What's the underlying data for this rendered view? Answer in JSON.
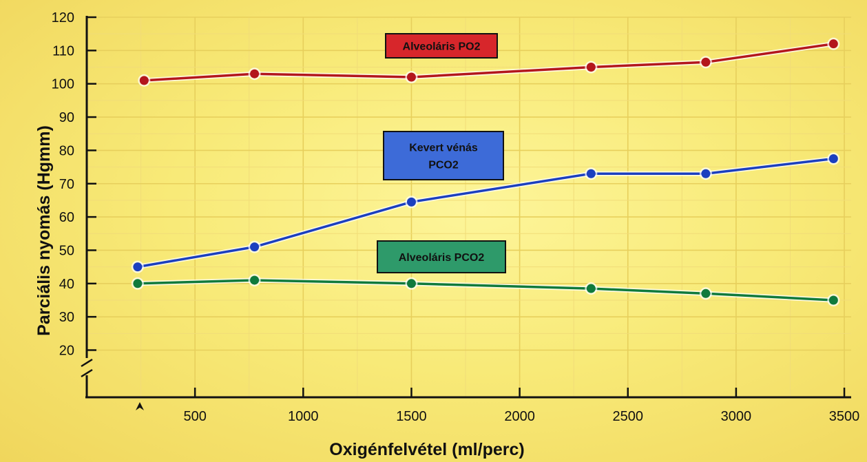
{
  "chart_data": {
    "type": "line",
    "xlabel": "Oxigénfelvétel (ml/perc)",
    "ylabel": "Parciális nyomás (Hgmm)",
    "xlim": [
      0,
      3500
    ],
    "ylim": [
      20,
      120
    ],
    "x_ticks": [
      500,
      1000,
      1500,
      2000,
      2500,
      3000,
      3500
    ],
    "y_ticks": [
      20,
      30,
      40,
      50,
      60,
      70,
      80,
      90,
      100,
      110,
      120
    ],
    "grid": true,
    "series": [
      {
        "name": "Alveoláris PO2",
        "color": "#b3161c",
        "box_color": "#d7262b",
        "points": [
          [
            265,
            101
          ],
          [
            775,
            103
          ],
          [
            1500,
            102
          ],
          [
            2330,
            105
          ],
          [
            2860,
            106.5
          ],
          [
            3450,
            112
          ]
        ]
      },
      {
        "name": "Kevert vénás PCO2",
        "name_lines": [
          "Kevert vénás",
          "PCO2"
        ],
        "color": "#1b3fbf",
        "box_color": "#3d6bd8",
        "points": [
          [
            235,
            45
          ],
          [
            775,
            51
          ],
          [
            1500,
            64.5
          ],
          [
            2330,
            73
          ],
          [
            2860,
            73
          ],
          [
            3450,
            77.5
          ]
        ]
      },
      {
        "name": "Alveoláris PCO2",
        "color": "#0f7a3c",
        "box_color": "#2e9a6a",
        "points": [
          [
            235,
            40
          ],
          [
            775,
            41
          ],
          [
            1500,
            40
          ],
          [
            2330,
            38.5
          ],
          [
            2860,
            37
          ],
          [
            3450,
            35
          ]
        ]
      }
    ]
  }
}
